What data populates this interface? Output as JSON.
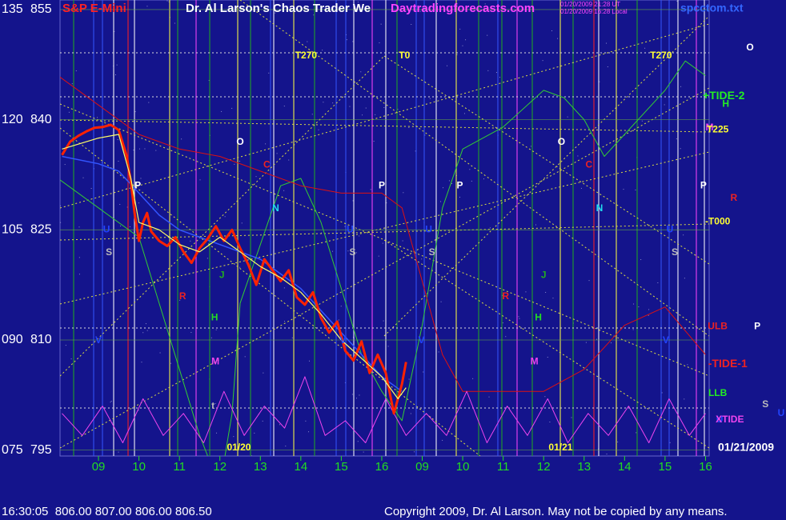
{
  "chart_data": {
    "type": "line",
    "symbol": "S&P E-Mini",
    "title": "Dr. Al Larson's Chaos Trader We",
    "site": "Daytradingforecasts.com",
    "timestamps": [
      "01/20/2009 21:28 UT",
      "01/20/2009 16:28 Local"
    ],
    "file": "spcctom.txt",
    "status": "16:30:05  806.00 807.00 806.00 806.50",
    "copyright": "Copyright 2009, Dr. Al Larson. May not be copied by any means.",
    "grid": true,
    "ylim": [
      794.2,
      856.3
    ],
    "yticks": [
      855,
      840,
      825,
      810,
      795
    ],
    "y2lim": [
      74.2,
      136.3
    ],
    "y2ticks": [
      135,
      120,
      105,
      {
        "value": 90,
        "label": "090"
      },
      {
        "value": 75,
        "label": "075"
      }
    ],
    "xlim": [
      -0.95,
      15.09
    ],
    "xticks": [
      {
        "value": 0,
        "label": "09"
      },
      {
        "value": 1,
        "label": "10"
      },
      {
        "value": 2,
        "label": "11"
      },
      {
        "value": 3,
        "label": "12"
      },
      {
        "value": 4,
        "label": "13"
      },
      {
        "value": 5,
        "label": "14"
      },
      {
        "value": 6,
        "label": "15"
      },
      {
        "value": 7,
        "label": "16"
      },
      {
        "value": 8,
        "label": "09"
      },
      {
        "value": 9,
        "label": "10"
      },
      {
        "value": 10,
        "label": "11"
      },
      {
        "value": 11,
        "label": "12"
      },
      {
        "value": 12,
        "label": "13"
      },
      {
        "value": 13,
        "label": "14"
      },
      {
        "value": 14,
        "label": "15"
      },
      {
        "value": 15,
        "label": "16"
      }
    ],
    "series": [
      {
        "color": "#33cc33",
        "width": 1,
        "x": [
          -1,
          0,
          1,
          1.5,
          2,
          2.5,
          3,
          3.3,
          3.5,
          4,
          4.5,
          5,
          5.5,
          6,
          6.5,
          7,
          7.5,
          8,
          8.5,
          9,
          10,
          11,
          11.5,
          12,
          12.5,
          13,
          14,
          14.5,
          15
        ],
        "values": [
          832,
          828,
          824,
          815,
          806,
          797,
          790,
          800,
          815,
          823,
          831,
          832,
          826,
          817,
          808,
          803,
          799,
          812,
          828,
          836,
          839,
          844,
          843,
          840,
          835,
          838,
          844,
          848,
          846
        ]
      },
      {
        "color": "#dd1111",
        "width": 1,
        "x": [
          -1,
          0,
          1,
          2,
          3,
          4,
          5,
          6,
          7,
          7.5,
          8,
          8.5,
          9,
          10,
          11,
          12,
          13,
          14,
          15
        ],
        "values": [
          846,
          842,
          838,
          836,
          835,
          833,
          831,
          830,
          830,
          828,
          818,
          808,
          803,
          803,
          803,
          806,
          812,
          814.5,
          808
        ]
      },
      {
        "color": "#ee44ee",
        "width": 1,
        "x": [
          -0.9,
          -0.4,
          0.1,
          0.6,
          1.1,
          1.6,
          2.1,
          2.6,
          3.1,
          3.6,
          4.1,
          4.6,
          5.1,
          5.6,
          6.1,
          6.6,
          7.1,
          7.6,
          8.1,
          8.6,
          9.1,
          9.6,
          10.1,
          10.6,
          11.1,
          11.6,
          12.1,
          12.6,
          13.1,
          13.6,
          14.1,
          14.6,
          15.0
        ],
        "values": [
          800,
          797,
          801,
          796,
          802,
          797,
          800,
          796,
          803,
          797,
          801,
          798,
          805,
          797,
          799,
          796,
          802,
          797,
          800,
          797,
          803,
          796,
          801,
          797,
          802,
          796,
          800,
          797,
          801,
          796,
          802,
          797,
          800
        ]
      },
      {
        "color": "#3355ff",
        "width": 1.5,
        "x": [
          -0.9,
          0,
          0.5,
          1,
          1.5,
          2,
          2.5,
          3,
          3.5,
          4,
          4.5,
          5,
          5.5,
          6,
          6.5,
          7,
          7.5
        ],
        "values": [
          835,
          834,
          833,
          830,
          827,
          825,
          824,
          823,
          822,
          821,
          819,
          817,
          814,
          811,
          808,
          805,
          803
        ]
      },
      {
        "color": "#ff2200",
        "width": 3,
        "x": [
          -0.9,
          -0.7,
          -0.5,
          -0.3,
          -0.1,
          0.1,
          0.3,
          0.5,
          0.7,
          0.8,
          0.9,
          1.0,
          1.1,
          1.2,
          1.3,
          1.5,
          1.7,
          1.9,
          2.1,
          2.3,
          2.5,
          2.7,
          2.9,
          3.1,
          3.3,
          3.5,
          3.7,
          3.9,
          4.1,
          4.3,
          4.5,
          4.7,
          4.9,
          5.1,
          5.3,
          5.5,
          5.7,
          5.9,
          6.1,
          6.3,
          6.5,
          6.7,
          6.9,
          7.1,
          7.3,
          7.5,
          7.6
        ],
        "values": [
          835.2,
          837,
          837.8,
          838.4,
          838.9,
          839,
          839.3,
          838.6,
          835,
          831.5,
          827,
          823.5,
          826,
          827.3,
          824.8,
          823.5,
          822.8,
          824,
          822,
          820.5,
          822.5,
          823.8,
          825.5,
          823.5,
          825,
          822.5,
          820.3,
          817.5,
          821,
          819.5,
          818,
          819.5,
          815.8,
          814.8,
          816.5,
          813,
          811,
          812.5,
          808.5,
          807.2,
          809.8,
          805.5,
          808,
          805.5,
          800,
          804,
          807
        ]
      },
      {
        "color": "#ffff66",
        "width": 1.2,
        "x": [
          -0.9,
          0,
          0.5,
          0.8,
          1.0,
          1.5,
          2,
          2.5,
          3,
          3.5,
          4,
          4.5,
          5,
          5.5,
          6,
          6.5,
          7,
          7.4,
          7.6
        ],
        "values": [
          836,
          837.5,
          838,
          832,
          826,
          825,
          823,
          822,
          824,
          822,
          820,
          818.5,
          816.5,
          813.5,
          810,
          807.5,
          805,
          802,
          803.5
        ]
      }
    ],
    "annotations": [
      {
        "text": "T270",
        "x": 5.13,
        "y": 848.7,
        "color": "#ffff33"
      },
      {
        "text": "T0",
        "x": 7.56,
        "y": 848.7,
        "color": "#ffff33"
      },
      {
        "text": "T270",
        "x": 13.9,
        "y": 848.7,
        "color": "#ffff33"
      },
      {
        "text": "O",
        "x": 3.5,
        "y": 836.9,
        "color": "#ffffff"
      },
      {
        "text": "C",
        "x": 4.16,
        "y": 833.8,
        "color": "#ee2222"
      },
      {
        "text": "P",
        "x": 0.97,
        "y": 831,
        "color": "#ffffff"
      },
      {
        "text": "N",
        "x": 4.38,
        "y": 827.9,
        "color": "#22ddee"
      },
      {
        "text": "P",
        "x": 7.0,
        "y": 831,
        "color": "#ffffff"
      },
      {
        "text": "P",
        "x": 8.93,
        "y": 831,
        "color": "#ffffff"
      },
      {
        "text": "U",
        "x": 0.2,
        "y": 825,
        "color": "#2244ff"
      },
      {
        "text": "S",
        "x": 0.26,
        "y": 821.9,
        "color": "#bbbbbb"
      },
      {
        "text": "U",
        "x": 6.22,
        "y": 825,
        "color": "#2244ff"
      },
      {
        "text": "S",
        "x": 6.28,
        "y": 821.9,
        "color": "#bbbbbb"
      },
      {
        "text": "U",
        "x": 8.16,
        "y": 825,
        "color": "#2244ff"
      },
      {
        "text": "S",
        "x": 8.24,
        "y": 821.9,
        "color": "#bbbbbb"
      },
      {
        "text": "R",
        "x": 2.08,
        "y": 815.9,
        "color": "#ee2222"
      },
      {
        "text": "J",
        "x": 3.05,
        "y": 818.8,
        "color": "#22aa22"
      },
      {
        "text": "H",
        "x": 2.87,
        "y": 813,
        "color": "#22dd22"
      },
      {
        "text": "M",
        "x": 2.89,
        "y": 807,
        "color": "#ee44ee"
      },
      {
        "text": "V",
        "x": 0,
        "y": 809.9,
        "color": "#2244ff"
      },
      {
        "text": "V",
        "x": 6.04,
        "y": 809.9,
        "color": "#2244ff"
      },
      {
        "text": "V",
        "x": 7.98,
        "y": 809.9,
        "color": "#2244ff"
      },
      {
        "text": "t",
        "x": 2.83,
        "y": 801,
        "color": "#bbbbbb"
      },
      {
        "text": "O",
        "x": 11.44,
        "y": 836.9,
        "color": "#ffffff"
      },
      {
        "text": "C",
        "x": 12.12,
        "y": 833.8,
        "color": "#ee2222"
      },
      {
        "text": "N",
        "x": 12.38,
        "y": 827.9,
        "color": "#22ddee"
      },
      {
        "text": "J",
        "x": 11.0,
        "y": 818.8,
        "color": "#22aa22"
      },
      {
        "text": "R",
        "x": 10.06,
        "y": 815.9,
        "color": "#ee2222"
      },
      {
        "text": "H",
        "x": 10.87,
        "y": 813,
        "color": "#22dd22"
      },
      {
        "text": "M",
        "x": 10.77,
        "y": 807,
        "color": "#ee44ee"
      },
      {
        "text": "U",
        "x": 14.12,
        "y": 825,
        "color": "#2244ff"
      },
      {
        "text": "S",
        "x": 14.24,
        "y": 821.9,
        "color": "#bbbbbb"
      },
      {
        "text": "V",
        "x": 14.02,
        "y": 809.9,
        "color": "#2244ff"
      },
      {
        "text": "P",
        "x": 14.95,
        "y": 831,
        "color": "#ffffff"
      },
      {
        "text": "O",
        "x": 16.1,
        "y": 849.8,
        "color": "#ffffff"
      },
      {
        "text": "+TIDE-2",
        "x": 15.45,
        "y": 843.2,
        "color": "#22ee22"
      },
      {
        "text": "H",
        "x": 15.5,
        "y": 842.1,
        "color": "#22ee22"
      },
      {
        "text": "M",
        "x": 15.1,
        "y": 838.9,
        "color": "#ee44ee"
      },
      {
        "text": "T225",
        "x": 15.3,
        "y": 838.6,
        "color": "#ffff33"
      },
      {
        "text": "R",
        "x": 15.7,
        "y": 829.3,
        "color": "#ee2222"
      },
      {
        "text": "-T000",
        "x": 15.3,
        "y": 826.1,
        "color": "#ffff33"
      },
      {
        "text": "ULB",
        "x": 15.3,
        "y": 811.8,
        "color": "#ee2222"
      },
      {
        "text": "P",
        "x": 16.28,
        "y": 811.8,
        "color": "#ffffff"
      },
      {
        "text": "-TIDE-1",
        "x": 15.55,
        "y": 806.7,
        "color": "#ee2222"
      },
      {
        "text": "LLB",
        "x": 15.3,
        "y": 802.7,
        "color": "#22ee22"
      },
      {
        "text": "S",
        "x": 16.48,
        "y": 801.2,
        "color": "#bbbbbb"
      },
      {
        "text": "U",
        "x": 16.87,
        "y": 800,
        "color": "#2244ff"
      },
      {
        "text": "U",
        "x": 15.35,
        "y": 799.1,
        "color": "#2244ff"
      },
      {
        "text": "XTIDE",
        "x": 15.6,
        "y": 799.1,
        "color": "#ee44ee"
      },
      {
        "text": "01/20",
        "x": 3.47,
        "y": 795.3,
        "color": "#ffff33"
      },
      {
        "text": "01/21",
        "x": 11.42,
        "y": 795.3,
        "color": "#ffff33"
      },
      {
        "text": "01/21/2009",
        "x": 16.0,
        "y": 795.3,
        "color": "#ffffff"
      }
    ]
  }
}
